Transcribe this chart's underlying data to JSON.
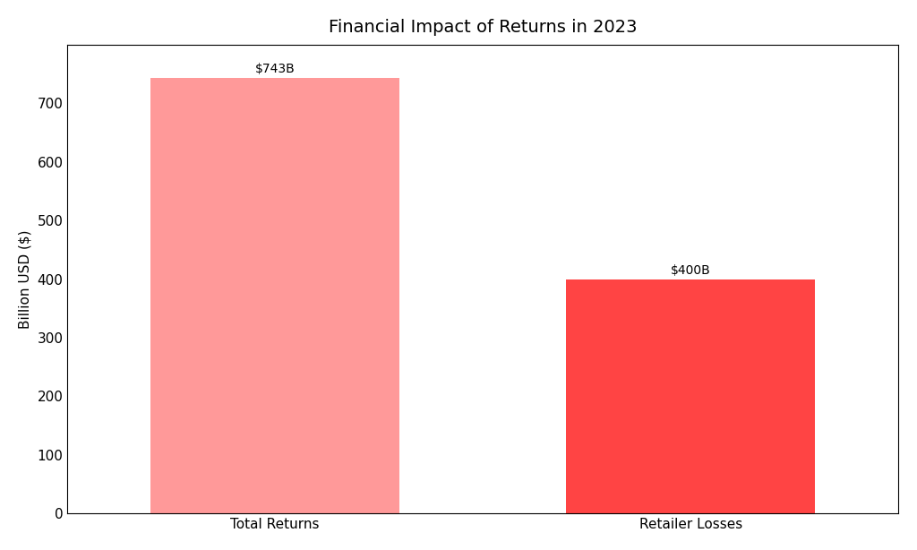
{
  "title": "Financial Impact of Returns in 2023",
  "categories": [
    "Total Returns",
    "Retailer Losses"
  ],
  "values": [
    743,
    400
  ],
  "labels": [
    "$743B",
    "$400B"
  ],
  "bar_colors": [
    "#ff9999",
    "#ff4444"
  ],
  "ylabel": "Billion USD ($)",
  "ylim": [
    0,
    800
  ],
  "yticks": [
    0,
    100,
    200,
    300,
    400,
    500,
    600,
    700
  ],
  "background_color": "#ffffff",
  "title_fontsize": 14,
  "label_fontsize": 10,
  "tick_fontsize": 11,
  "ylabel_fontsize": 11,
  "bar_width": 0.6
}
